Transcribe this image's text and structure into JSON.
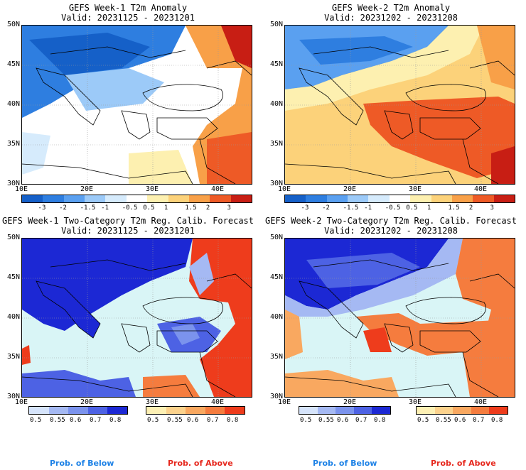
{
  "panels": [
    {
      "title": "GEFS Week-1 T2m Anomaly",
      "valid": "Valid: 20231125 - 20231201",
      "kind": "anomaly",
      "lat_labels": [
        "50N",
        "45N",
        "40N",
        "35N",
        "30N"
      ],
      "lon_labels": [
        "10E",
        "20E",
        "30E",
        "40E"
      ],
      "colorbar_labels": [
        "-3",
        "-2",
        "-1.5",
        "-1",
        "-0.5",
        "0.5",
        "1",
        "1.5",
        "2",
        "3"
      ]
    },
    {
      "title": "GEFS Week-2 T2m Anomaly",
      "valid": "Valid: 20231202 - 20231208",
      "kind": "anomaly",
      "lat_labels": [
        "50N",
        "45N",
        "40N",
        "35N",
        "30N"
      ],
      "lon_labels": [
        "10E",
        "20E",
        "30E",
        "40E"
      ],
      "colorbar_labels": [
        "-3",
        "-2",
        "-1.5",
        "-1",
        "-0.5",
        "0.5",
        "1",
        "1.5",
        "2",
        "3"
      ]
    },
    {
      "title": "GEFS Week-1 Two-Category T2m Reg. Calib. Forecast",
      "valid": "Valid: 20231125 - 20231201",
      "kind": "probability",
      "lat_labels": [
        "50N",
        "45N",
        "40N",
        "35N",
        "30N"
      ],
      "lon_labels": [
        "10E",
        "20E",
        "30E",
        "40E"
      ],
      "below_labels": [
        "0.5",
        "0.55",
        "0.6",
        "0.7",
        "0.8"
      ],
      "above_labels": [
        "0.5",
        "0.55",
        "0.6",
        "0.7",
        "0.8"
      ]
    },
    {
      "title": "GEFS Week-2 Two-Category T2m Reg. Calib. Forecast",
      "valid": "Valid: 20231202 - 20231208",
      "kind": "probability",
      "lat_labels": [
        "50N",
        "45N",
        "40N",
        "35N",
        "30N"
      ],
      "lon_labels": [
        "10E",
        "20E",
        "30E",
        "40E"
      ],
      "below_labels": [
        "0.5",
        "0.55",
        "0.6",
        "0.7",
        "0.8"
      ],
      "above_labels": [
        "0.5",
        "0.55",
        "0.6",
        "0.7",
        "0.8"
      ]
    }
  ],
  "legend": {
    "below": "Prob. of Below",
    "above": "Prob. of Above"
  },
  "colors": {
    "anomaly_scale": [
      "#1560c8",
      "#2e7ee0",
      "#5aa0f0",
      "#9ccaf8",
      "#d6ebfc",
      "#ffffff",
      "#fdf0b0",
      "#fcd27a",
      "#f8a048",
      "#ee5a26",
      "#c81e14"
    ],
    "below_scale": [
      "#d6e4fb",
      "#a5b9f3",
      "#7b93ed",
      "#4d62e4",
      "#1c28d4"
    ],
    "above_scale": [
      "#fdf0b4",
      "#fcd28c",
      "#f9a860",
      "#f57c3e",
      "#ee3c1c"
    ],
    "sea": "#d9f5f6"
  }
}
